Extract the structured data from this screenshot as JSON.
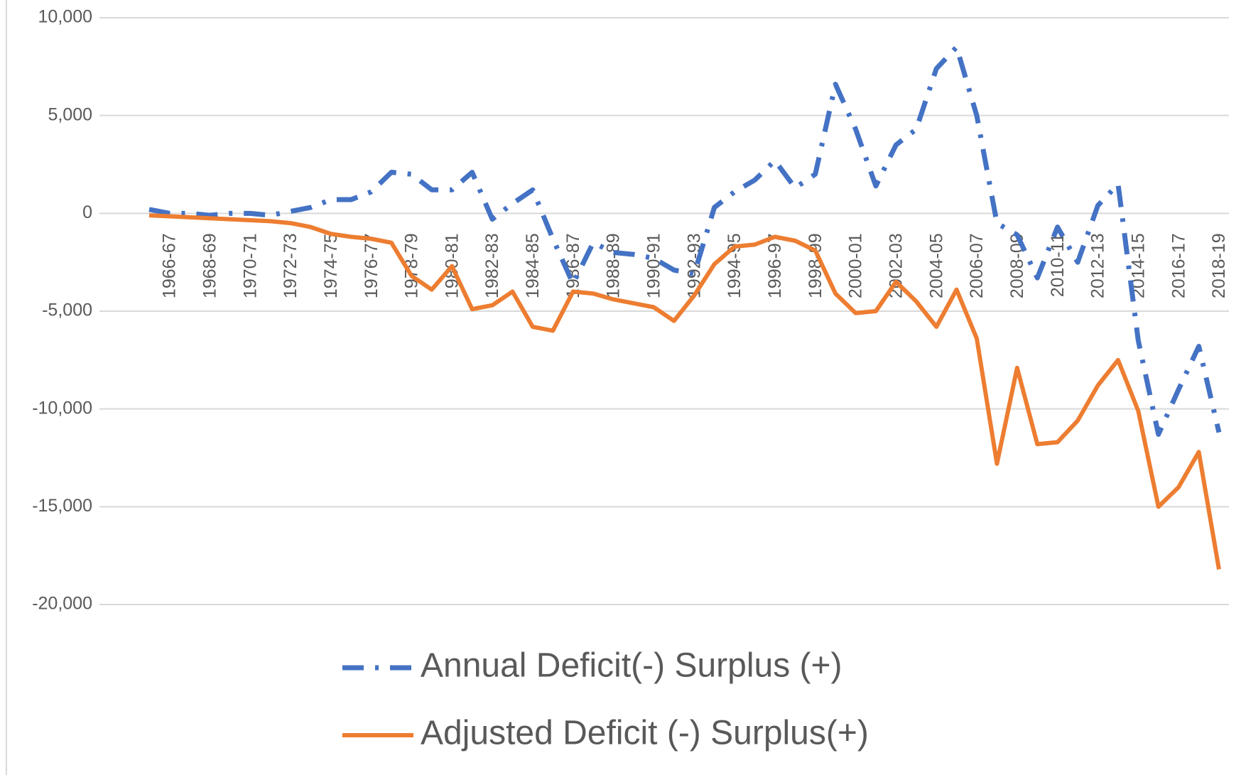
{
  "chart_data": {
    "type": "line",
    "categories": [
      "1966-67",
      null,
      "1968-69",
      null,
      "1970-71",
      null,
      "1972-73",
      null,
      "1974-75",
      null,
      "1976-77",
      null,
      "1978-79",
      null,
      "1980-81",
      null,
      "1982-83",
      null,
      "1984-85",
      null,
      "1986-87",
      null,
      "1988-89",
      null,
      "1990-91",
      null,
      "1992-93",
      null,
      "1994-95",
      null,
      "1996-97",
      null,
      "1998-99",
      null,
      "2000-01",
      null,
      "2002-03",
      null,
      "2004-05",
      null,
      "2006-07",
      null,
      "2008-09",
      null,
      "2010-11",
      null,
      "2012-13",
      null,
      "2014-15",
      null,
      "2016-17",
      null,
      "2018-19",
      null
    ],
    "series": [
      {
        "name": "Annual Deficit(-) Surplus (+)",
        "color": "#4472c4",
        "dash": true,
        "values": [
          200,
          0,
          0,
          -100,
          0,
          0,
          -100,
          100,
          300,
          700,
          700,
          1100,
          2100,
          2000,
          1200,
          1200,
          2100,
          -300,
          500,
          1200,
          -1300,
          -3600,
          -1500,
          -2000,
          -2100,
          -2300,
          -2900,
          -3100,
          300,
          1100,
          1700,
          2700,
          1300,
          2000,
          6600,
          4300,
          1400,
          3500,
          4300,
          7400,
          8500,
          5000,
          -500,
          -1100,
          -3300,
          -700,
          -2500,
          400,
          1500,
          -6500,
          -11300,
          -9000,
          -6800,
          -11200
        ]
      },
      {
        "name": "Adjusted Deficit (-) Surplus(+)",
        "color": "#ed7d31",
        "dash": false,
        "values": [
          -100,
          -150,
          -200,
          -250,
          -300,
          -350,
          -400,
          -500,
          -700,
          -1050,
          -1200,
          -1300,
          -1500,
          -3200,
          -3900,
          -2700,
          -4900,
          -4700,
          -4000,
          -5800,
          -6000,
          -4000,
          -4100,
          -4400,
          -4600,
          -4800,
          -5500,
          -4200,
          -2600,
          -1700,
          -1600,
          -1200,
          -1400,
          -1900,
          -4100,
          -5100,
          -5000,
          -3500,
          -4500,
          -5800,
          -3900,
          -6400,
          -12800,
          -7900,
          -11800,
          -11700,
          -10600,
          -8800,
          -7500,
          -10100,
          -15000,
          -14000,
          -12200,
          -18200
        ]
      }
    ],
    "ylim": [
      -20000,
      10000
    ],
    "yticks": [
      {
        "value": -20000,
        "label": "-20,000"
      },
      {
        "value": -15000,
        "label": "-15,000"
      },
      {
        "value": -10000,
        "label": "-10,000"
      },
      {
        "value": -5000,
        "label": "-5,000"
      },
      0,
      {
        "value": 5000,
        "label": "5,000"
      },
      {
        "value": 10000,
        "label": "10,000"
      }
    ],
    "grid": true,
    "legend": "bottom"
  }
}
